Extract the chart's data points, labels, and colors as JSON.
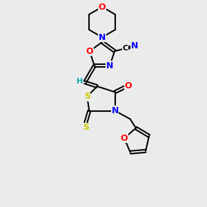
{
  "bg_color": "#ebebeb",
  "atom_colors": {
    "C": "#000000",
    "N": "#0000ff",
    "O": "#ff0000",
    "S": "#cccc00",
    "H": "#00aaaa"
  },
  "bond_color": "#000000"
}
